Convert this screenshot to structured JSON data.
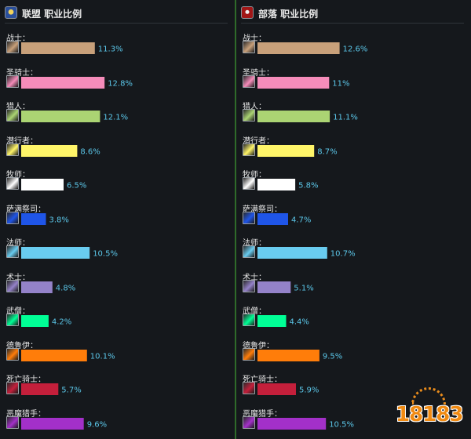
{
  "colors": {
    "background": "#15181c",
    "divider": "#2f6b2a",
    "percent_text": "#5bc6e8"
  },
  "watermark": {
    "text": "18183"
  },
  "chart_data": [
    {
      "type": "bar",
      "orientation": "horizontal",
      "title": "联盟 职业比例",
      "emblem": "alliance-emblem-icon",
      "categories": [
        "战士：",
        "圣骑士：",
        "猎人：",
        "潜行者：",
        "牧师：",
        "萨满祭司：",
        "法师：",
        "术士：",
        "武僧：",
        "德鲁伊：",
        "死亡骑士：",
        "恶魔猎手："
      ],
      "values": [
        11.3,
        12.8,
        12.1,
        8.6,
        6.5,
        3.8,
        10.5,
        4.8,
        4.2,
        10.1,
        5.7,
        9.6
      ],
      "labels": [
        "11.3%",
        "12.8%",
        "12.1%",
        "8.6%",
        "6.5%",
        "3.8%",
        "10.5%",
        "4.8%",
        "4.2%",
        "10.1%",
        "5.7%",
        "9.6%"
      ],
      "colors": [
        "#c8a07a",
        "#f58cba",
        "#abd473",
        "#fff569",
        "#ffffff",
        "#1f55e8",
        "#69ccf0",
        "#9482c9",
        "#00ff96",
        "#ff7d0a",
        "#c41f3b",
        "#a330c9"
      ],
      "icons": [
        "warrior-icon",
        "paladin-icon",
        "hunter-icon",
        "rogue-icon",
        "priest-icon",
        "shaman-icon",
        "mage-icon",
        "warlock-icon",
        "monk-icon",
        "druid-icon",
        "death-knight-icon",
        "demon-hunter-icon"
      ],
      "xlim": [
        0,
        13
      ]
    },
    {
      "type": "bar",
      "orientation": "horizontal",
      "title": "部落 职业比例",
      "emblem": "horde-emblem-icon",
      "categories": [
        "战士：",
        "圣骑士：",
        "猎人：",
        "潜行者：",
        "牧师：",
        "萨满祭司：",
        "法师：",
        "术士：",
        "武僧：",
        "德鲁伊：",
        "死亡骑士：",
        "恶魔猎手："
      ],
      "values": [
        12.6,
        11,
        11.1,
        8.7,
        5.8,
        4.7,
        10.7,
        5.1,
        4.4,
        9.5,
        5.9,
        10.5
      ],
      "labels": [
        "12.6%",
        "11%",
        "11.1%",
        "8.7%",
        "5.8%",
        "4.7%",
        "10.7%",
        "5.1%",
        "4.4%",
        "9.5%",
        "5.9%",
        "10.5%"
      ],
      "colors": [
        "#c8a07a",
        "#f58cba",
        "#abd473",
        "#fff569",
        "#ffffff",
        "#1f55e8",
        "#69ccf0",
        "#9482c9",
        "#00ff96",
        "#ff7d0a",
        "#c41f3b",
        "#a330c9"
      ],
      "icons": [
        "warrior-icon",
        "paladin-icon",
        "hunter-icon",
        "rogue-icon",
        "priest-icon",
        "shaman-icon",
        "mage-icon",
        "warlock-icon",
        "monk-icon",
        "druid-icon",
        "death-knight-icon",
        "demon-hunter-icon"
      ],
      "xlim": [
        0,
        13
      ]
    }
  ]
}
